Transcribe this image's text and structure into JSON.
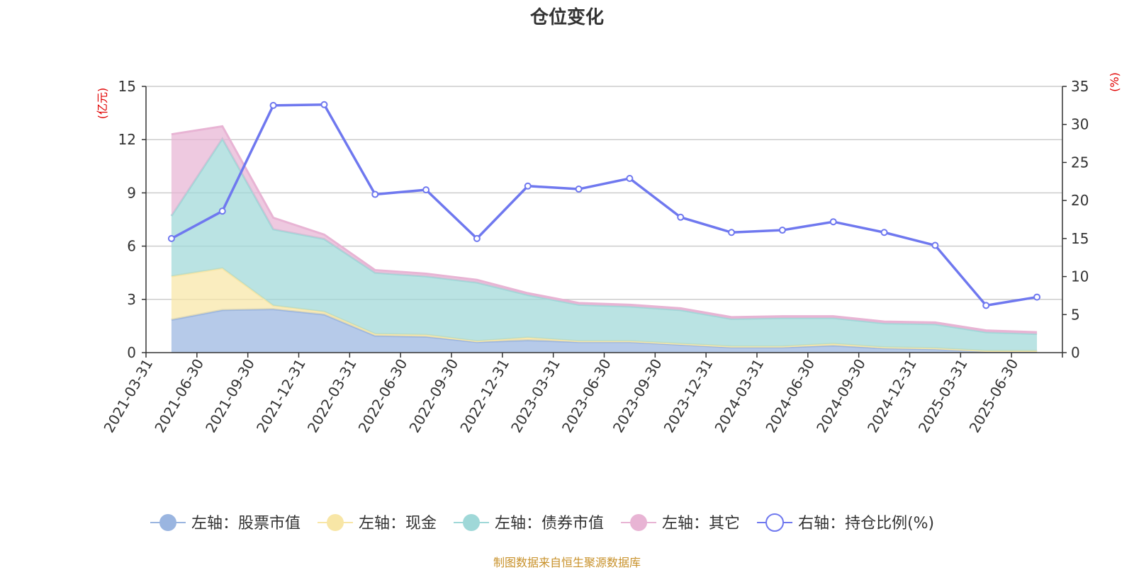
{
  "chart_data": {
    "type": "area",
    "title": "仓位变化",
    "categories": [
      "2021-03-31",
      "2021-06-30",
      "2021-09-30",
      "2021-12-31",
      "2022-03-31",
      "2022-06-30",
      "2022-09-30",
      "2022-12-31",
      "2023-03-31",
      "2023-06-30",
      "2023-09-30",
      "2023-12-31",
      "2024-03-31",
      "2024-06-30",
      "2024-09-30",
      "2024-12-31",
      "2025-03-31",
      "2025-06-30"
    ],
    "left_axis": {
      "unit": "(亿元)",
      "ylim": [
        0,
        15
      ],
      "ticks": [
        0,
        3,
        6,
        9,
        12,
        15
      ]
    },
    "right_axis": {
      "unit": "(%)",
      "ylim": [
        0,
        35
      ],
      "ticks": [
        0,
        5,
        10,
        15,
        20,
        25,
        30,
        35
      ]
    },
    "stacked": true,
    "series": [
      {
        "name": "左轴：股票市值",
        "axis": "left",
        "type": "area",
        "color": "#9ab5e0",
        "values": [
          1.85,
          2.4,
          2.45,
          2.15,
          0.95,
          0.9,
          0.6,
          0.7,
          0.6,
          0.6,
          0.45,
          0.3,
          0.3,
          0.4,
          0.25,
          0.2,
          0.08,
          0.08
        ]
      },
      {
        "name": "左轴：现金",
        "axis": "left",
        "type": "area",
        "color": "#f8e6a6",
        "values": [
          2.45,
          2.35,
          0.2,
          0.15,
          0.1,
          0.1,
          0.05,
          0.15,
          0.05,
          0.05,
          0.05,
          0.05,
          0.05,
          0.1,
          0.05,
          0.05,
          0.02,
          0.02
        ]
      },
      {
        "name": "左轴：债券市值",
        "axis": "left",
        "type": "area",
        "color": "#9fd8d8",
        "values": [
          3.4,
          7.3,
          4.3,
          4.1,
          3.45,
          3.3,
          3.3,
          2.4,
          2.05,
          1.95,
          1.9,
          1.55,
          1.6,
          1.45,
          1.35,
          1.35,
          1.05,
          0.95
        ]
      },
      {
        "name": "左轴：其它",
        "axis": "left",
        "type": "area",
        "color": "#e8b4d4",
        "values": [
          4.6,
          0.7,
          0.65,
          0.25,
          0.15,
          0.15,
          0.15,
          0.1,
          0.1,
          0.1,
          0.1,
          0.1,
          0.1,
          0.1,
          0.1,
          0.1,
          0.1,
          0.1
        ]
      },
      {
        "name": "右轴：持仓比例(%)",
        "axis": "right",
        "type": "line",
        "color": "#6f78ef",
        "values": [
          15.0,
          18.6,
          32.5,
          32.6,
          20.8,
          21.4,
          15.0,
          21.9,
          21.5,
          22.9,
          17.8,
          15.8,
          16.1,
          17.2,
          15.8,
          14.1,
          6.2,
          7.3
        ]
      }
    ],
    "grid": true,
    "legend_position": "bottom"
  },
  "footer": {
    "source": "制图数据来自恒生聚源数据库"
  }
}
